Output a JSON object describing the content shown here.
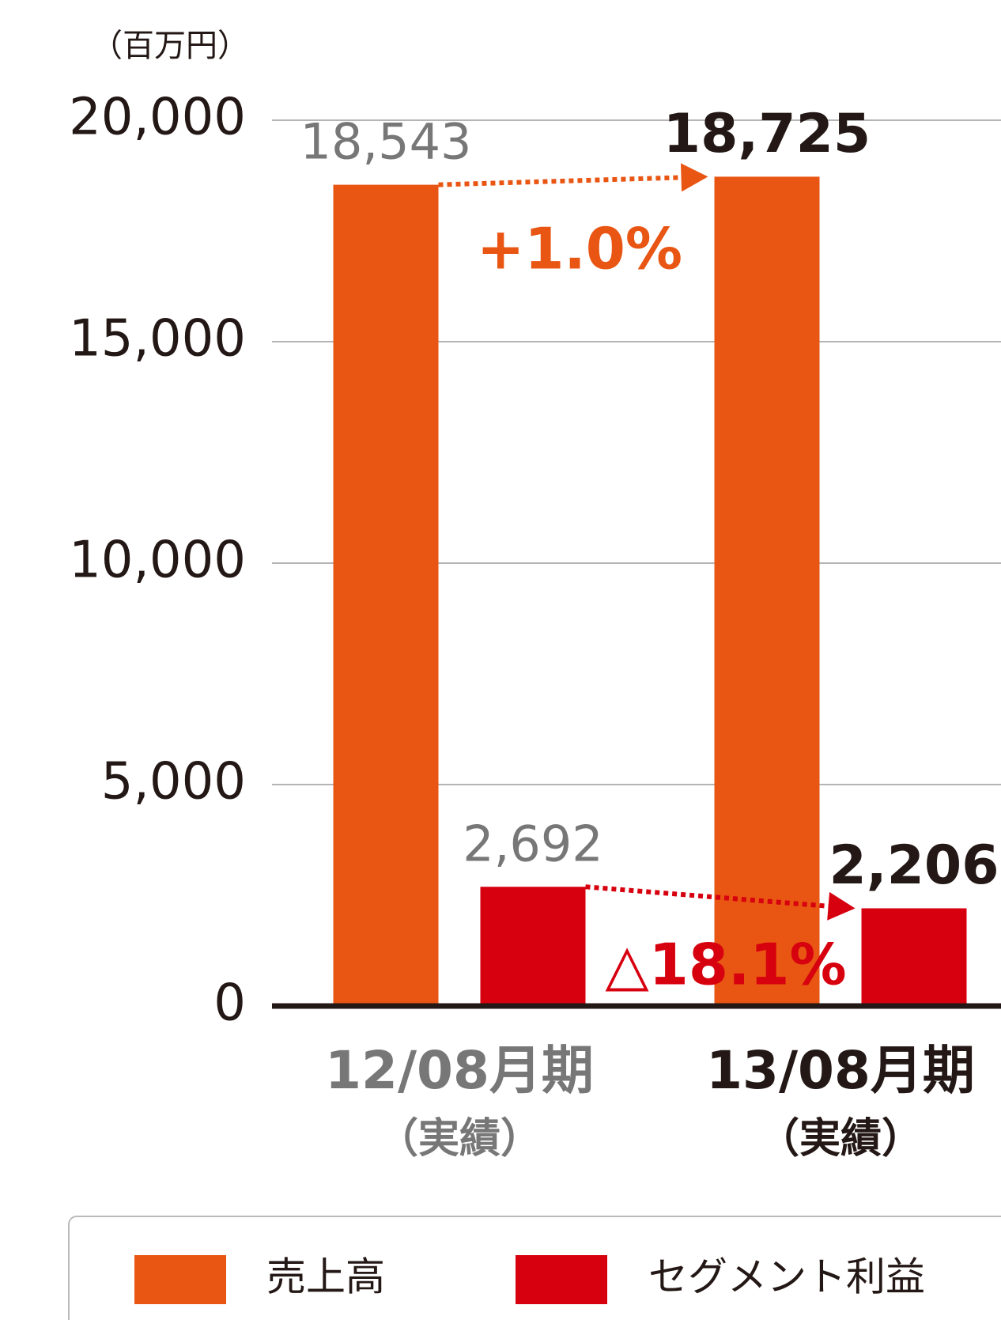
{
  "chart_data": {
    "type": "bar",
    "y_label": "（百万円）",
    "categories": [
      "12/08月期",
      "13/08月期"
    ],
    "category_sublabels": [
      "（実績）",
      "（実績）"
    ],
    "series": [
      {
        "name": "売上高",
        "color": "#e95513",
        "values": [
          18543,
          18725
        ],
        "value_labels": [
          "18,543",
          "18,725"
        ]
      },
      {
        "name": "セグメント利益",
        "color": "#d7000f",
        "values": [
          2692,
          2206
        ],
        "value_labels": [
          "2,692",
          "2,206"
        ]
      }
    ],
    "annotations": [
      "+1.0%",
      "△18.1%"
    ],
    "ylim": [
      0,
      20000
    ],
    "yticks": [
      0,
      {
        "value": 5000,
        "label": "5,000"
      },
      {
        "value": 10000,
        "label": "10,000"
      },
      {
        "value": 15000,
        "label": "15,000"
      },
      {
        "value": 20000,
        "label": "20,000"
      }
    ],
    "grid": true
  }
}
